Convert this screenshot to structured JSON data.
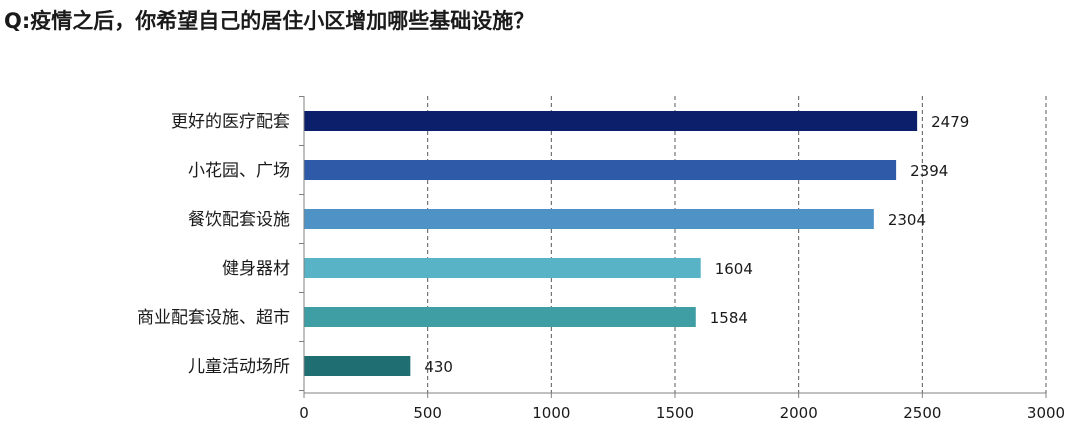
{
  "title": "Q:疫情之后，你希望自己的居住小区增加哪些基础设施？",
  "chart_data": {
    "type": "bar",
    "orientation": "horizontal",
    "categories": [
      "更好的医疗配套",
      "小花园、广场",
      "餐饮配套设施",
      "健身器材",
      "商业配套设施、超市",
      "儿童活动场所"
    ],
    "values": [
      2479,
      2394,
      2304,
      1604,
      1584,
      430
    ],
    "colors": [
      "#0b1f6b",
      "#2e5aa8",
      "#4f93c6",
      "#58b3c6",
      "#3f9ea3",
      "#1f6e72"
    ],
    "xlim": [
      0,
      3000
    ],
    "xticks": [
      "0",
      "500",
      "1000",
      "1500",
      "2000",
      "2500",
      "3000"
    ],
    "xtick_values": [
      0,
      500,
      1000,
      1500,
      2000,
      2500,
      3000
    ],
    "grid": "vertical-dashed",
    "data_labels": true
  }
}
